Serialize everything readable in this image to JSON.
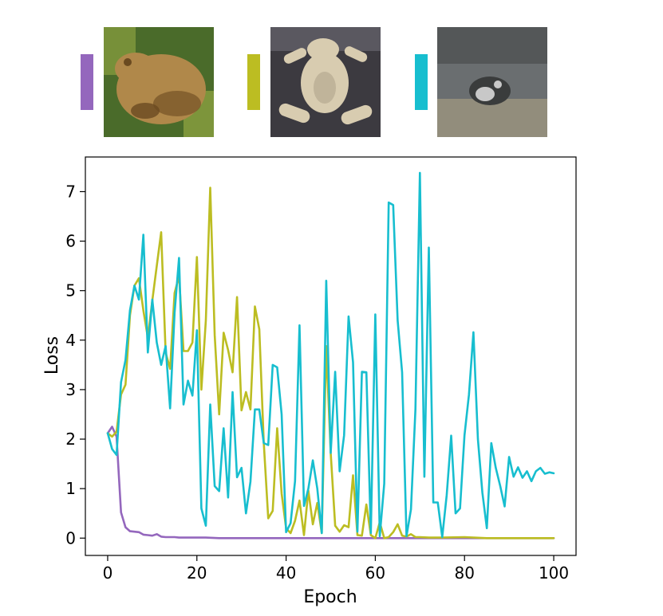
{
  "thumbnails": [
    {
      "id": "toad-photo",
      "series_color": "#9467bd",
      "palette": {
        "bg": "#4a6b2a",
        "body": "#b0884a",
        "shade": "#6a4a20",
        "accent": "#8aa040"
      }
    },
    {
      "id": "frog-cutout",
      "series_color": "#bcbd22",
      "palette": {
        "bg": "#3c3a40",
        "body": "#d8ccb0",
        "shade": "#a89c84",
        "accent": "#5a5860"
      }
    },
    {
      "id": "frog-in-tank",
      "series_color": "#17becf",
      "palette": {
        "bg": "#6a6e70",
        "body": "#a09880",
        "shade": "#3a3c3c",
        "accent": "#c8c8c8"
      }
    }
  ],
  "chart_data": {
    "type": "line",
    "xlabel": "Epoch",
    "ylabel": "Loss",
    "xlim": [
      -5,
      105
    ],
    "ylim": [
      -0.35,
      7.7
    ],
    "xticks": [
      0,
      20,
      40,
      60,
      80,
      100
    ],
    "yticks": [
      0,
      1,
      2,
      3,
      4,
      5,
      6,
      7
    ],
    "grid": false,
    "legend": "none",
    "series": [
      {
        "color": "#9467bd",
        "x": [
          0,
          1,
          2,
          3,
          4,
          5,
          6,
          7,
          8,
          9,
          10,
          11,
          12,
          13,
          14,
          15,
          16,
          17,
          18,
          19,
          20,
          22,
          25,
          30,
          40,
          50,
          60,
          70,
          80,
          90,
          100
        ],
        "y": [
          2.12,
          2.25,
          2.05,
          0.52,
          0.22,
          0.14,
          0.13,
          0.12,
          0.07,
          0.06,
          0.05,
          0.08,
          0.03,
          0.02,
          0.02,
          0.02,
          0.01,
          0.01,
          0.01,
          0.01,
          0.01,
          0.01,
          0.0,
          0.0,
          0.0,
          0.0,
          0.0,
          0.0,
          0.0,
          0.0,
          0.0
        ]
      },
      {
        "color": "#bcbd22",
        "x": [
          0,
          1,
          2,
          3,
          4,
          5,
          6,
          7,
          8,
          9,
          10,
          11,
          12,
          13,
          14,
          15,
          16,
          17,
          18,
          19,
          20,
          21,
          22,
          23,
          24,
          25,
          26,
          27,
          28,
          29,
          30,
          31,
          32,
          33,
          34,
          35,
          36,
          37,
          38,
          39,
          40,
          41,
          42,
          43,
          44,
          45,
          46,
          47,
          48,
          49,
          50,
          51,
          52,
          53,
          54,
          55,
          56,
          57,
          58,
          59,
          60,
          61,
          62,
          63,
          64,
          65,
          66,
          67,
          68,
          69,
          70,
          72,
          75,
          80,
          85,
          90,
          100
        ],
        "y": [
          2.12,
          2.05,
          2.15,
          2.9,
          3.1,
          4.5,
          5.1,
          5.25,
          4.6,
          4.05,
          4.8,
          5.5,
          6.18,
          3.75,
          3.42,
          4.95,
          5.3,
          3.78,
          3.78,
          3.95,
          5.68,
          3.0,
          4.4,
          7.08,
          4.1,
          2.5,
          4.15,
          3.8,
          3.35,
          4.87,
          2.58,
          2.95,
          2.6,
          4.68,
          4.22,
          1.93,
          0.4,
          0.55,
          2.22,
          0.9,
          0.2,
          0.1,
          0.35,
          0.76,
          0.06,
          0.96,
          0.28,
          0.71,
          0.1,
          3.88,
          1.72,
          0.25,
          0.13,
          0.26,
          0.22,
          1.27,
          0.06,
          0.05,
          0.68,
          0.06,
          0.0,
          0.32,
          0.0,
          0.02,
          0.12,
          0.28,
          0.05,
          0.03,
          0.08,
          0.02,
          0.02,
          0.01,
          0.01,
          0.02,
          0.0,
          0.0,
          0.0
        ]
      },
      {
        "color": "#17becf",
        "x": [
          0,
          1,
          2,
          3,
          4,
          5,
          6,
          7,
          8,
          9,
          10,
          11,
          12,
          13,
          14,
          15,
          16,
          17,
          18,
          19,
          20,
          21,
          22,
          23,
          24,
          25,
          26,
          27,
          28,
          29,
          30,
          31,
          32,
          33,
          34,
          35,
          36,
          37,
          38,
          39,
          40,
          41,
          42,
          43,
          44,
          45,
          46,
          47,
          48,
          49,
          50,
          51,
          52,
          53,
          54,
          55,
          56,
          57,
          58,
          59,
          60,
          61,
          62,
          63,
          64,
          65,
          66,
          67,
          68,
          69,
          70,
          71,
          72,
          73,
          74,
          75,
          76,
          77,
          78,
          79,
          80,
          81,
          82,
          83,
          84,
          85,
          86,
          87,
          88,
          89,
          90,
          91,
          92,
          93,
          94,
          95,
          96,
          97,
          98,
          99,
          100
        ],
        "y": [
          2.12,
          1.8,
          1.68,
          3.15,
          3.6,
          4.6,
          5.1,
          4.82,
          6.13,
          3.75,
          4.82,
          3.95,
          3.5,
          3.88,
          2.62,
          4.55,
          5.66,
          2.7,
          3.18,
          2.88,
          4.2,
          0.6,
          0.25,
          2.7,
          1.05,
          0.95,
          2.22,
          0.82,
          2.95,
          1.23,
          1.42,
          0.5,
          1.14,
          2.6,
          2.6,
          1.92,
          1.88,
          3.5,
          3.45,
          2.5,
          0.12,
          0.3,
          1.15,
          4.3,
          0.65,
          1.0,
          1.57,
          1.0,
          0.1,
          5.2,
          1.72,
          3.36,
          1.35,
          2.08,
          4.48,
          3.55,
          0.13,
          3.36,
          3.35,
          0.1,
          4.52,
          0.04,
          1.1,
          6.78,
          6.73,
          4.4,
          3.35,
          0.04,
          0.58,
          2.6,
          7.38,
          1.24,
          5.87,
          0.72,
          0.72,
          0.02,
          0.87,
          2.07,
          0.5,
          0.6,
          2.08,
          2.9,
          4.16,
          2.0,
          0.92,
          0.2,
          1.92,
          1.42,
          1.05,
          0.64,
          1.64,
          1.24,
          1.43,
          1.22,
          1.35,
          1.15,
          1.35,
          1.42,
          1.3,
          1.33,
          1.31
        ]
      }
    ]
  }
}
